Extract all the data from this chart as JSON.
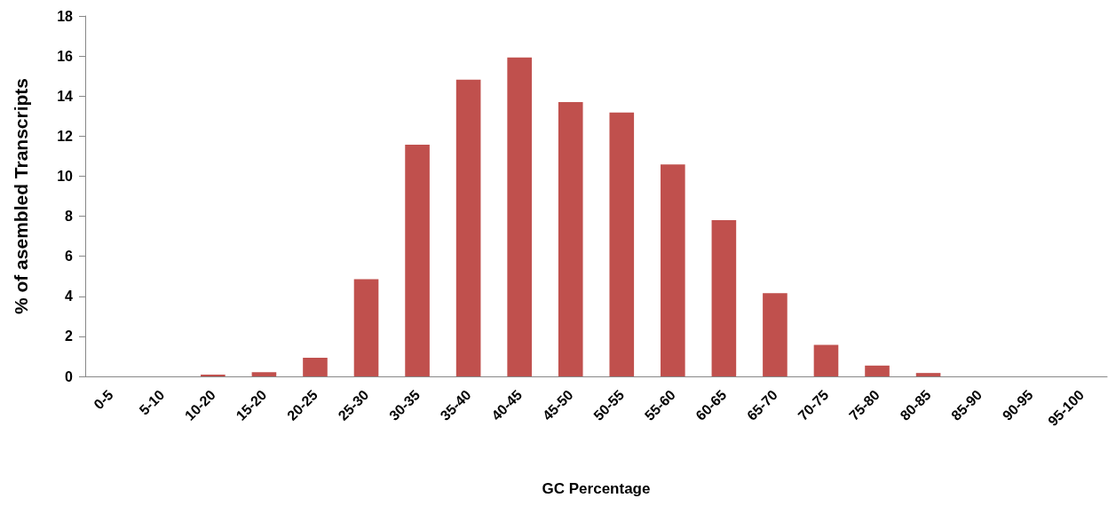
{
  "chart_data": {
    "type": "bar",
    "xlabel": "GC Percentage",
    "ylabel": "% of asembled Transcripts",
    "categories": [
      "0-5",
      "5-10",
      "10-20",
      "15-20",
      "20-25",
      "25-30",
      "30-35",
      "35-40",
      "40-45",
      "45-50",
      "50-55",
      "55-60",
      "60-65",
      "65-70",
      "70-75",
      "75-80",
      "80-85",
      "85-90",
      "90-95",
      "95-100"
    ],
    "values": [
      0,
      0,
      0.09,
      0.21,
      0.93,
      4.85,
      11.57,
      14.82,
      15.93,
      13.7,
      13.18,
      10.59,
      7.8,
      4.16,
      1.57,
      0.54,
      0.17,
      0,
      0,
      0
    ],
    "color": "#c0504d",
    "ylim": [
      0,
      18
    ],
    "yticks": [
      0,
      2,
      4,
      6,
      8,
      10,
      12,
      14,
      16,
      18
    ],
    "grid": false
  }
}
